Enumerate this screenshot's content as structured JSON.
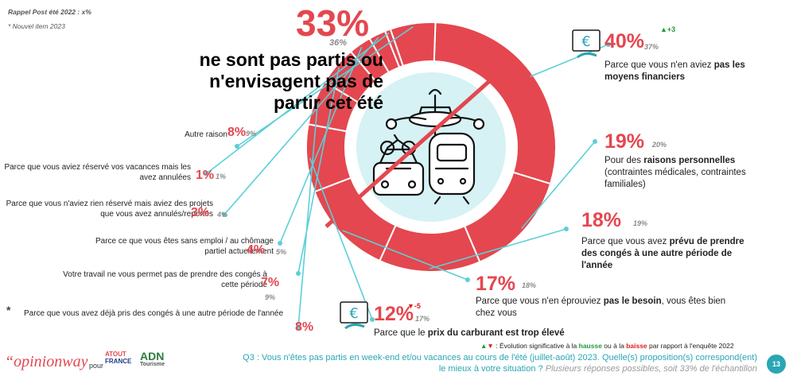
{
  "notes": {
    "recall": "Rappel Post été 2022 : x%",
    "new_item": "* Nouvel item 2023"
  },
  "headline": {
    "pct": "33%",
    "prev": "36%",
    "lines": [
      "ne sont pas partis ou",
      "n'envisagent pas de",
      "partir cet été"
    ]
  },
  "chart_data": {
    "type": "pie",
    "subtype": "donut",
    "title": "Q3 : Vous n'êtes pas partis en week-end et/ou vacances au cours de l'été (juillet-août) 2023. Quelle(s) proposition(s) correspond(ent) le mieux à votre situation ?",
    "series": [
      {
        "name": "2023",
        "categories": [
          "Parce que vous n'en aviez pas les moyens financiers",
          "Pour des raisons personnelles",
          "Parce que vous avez prévu de prendre des congés à une autre période de l'année",
          "Parce que vous n'en éprouviez pas le besoin",
          "Parce que le prix du carburant est trop élevé",
          "Parce que vous avez déjà pris des congés à une autre période de l'année",
          "Votre travail ne vous permet pas de prendre des congés à cette période",
          "Parce ce que vous êtes sans emploi / au chômage partiel actuellement",
          "Parce que vous n'aviez rien réservé mais aviez des projets que vous avez annulés/reportés",
          "Parce que vous aviez réservé vos vacances mais les avez annulées",
          "Autre raison"
        ],
        "values": [
          40,
          19,
          18,
          17,
          12,
          8,
          7,
          4,
          3,
          1,
          8
        ]
      },
      {
        "name": "2022",
        "values": [
          37,
          20,
          19,
          18,
          17,
          null,
          9,
          5,
          4,
          1,
          9
        ]
      }
    ]
  },
  "right_items": [
    {
      "pct": "40%",
      "prev": "37%",
      "delta": "▲+3",
      "text_plain": "Parce que vous n'en aviez ",
      "text_bold": "pas les moyens financiers",
      "text_after": ""
    },
    {
      "pct": "19%",
      "prev": "20%",
      "text_plain": "Pour des ",
      "text_bold": "raisons personnelles",
      "text_after": " (contraintes médicales, contraintes familiales)"
    },
    {
      "pct": "18%",
      "prev": "19%",
      "text_plain": "Parce que vous avez ",
      "text_bold": "prévu de prendre des congés à une autre période de l'année",
      "text_after": ""
    },
    {
      "pct": "17%",
      "prev": "18%",
      "text_plain": "Parce que vous n'en éprouviez ",
      "text_bold": "pas le besoin",
      "text_after": ", vous êtes bien chez vous"
    },
    {
      "pct": "12%",
      "prev": "17%",
      "delta": "▼-5",
      "text_plain": "Parce que le ",
      "text_bold": "prix du carburant est trop élevé",
      "text_after": ""
    }
  ],
  "left_items": [
    {
      "text": "Autre raison",
      "pct": "8%",
      "prev": "9%"
    },
    {
      "text": "Parce que vous aviez réservé vos vacances mais les avez annulées",
      "pct": "1%",
      "prev": "1%"
    },
    {
      "text": "Parce que vous n'aviez rien réservé mais aviez des projets que vous avez annulés/reportés",
      "pct": "3%",
      "prev": "4%"
    },
    {
      "text": "Parce ce que vous êtes sans emploi / au chômage partiel actuellement",
      "pct": "4%",
      "prev": "5%"
    },
    {
      "text": "Votre travail ne vous permet pas de prendre des congés à cette période",
      "pct": "7%",
      "prev": "9%"
    },
    {
      "star": "*",
      "text": "Parce que vous avez déjà pris des congés à une autre période de l'année",
      "pct": "8%"
    }
  ],
  "legend_note": {
    "pre": ": Évolution significative à la ",
    "up": "hausse",
    "mid": " ou à la ",
    "down": "baisse",
    "post": " par rapport à l'enquête 2022"
  },
  "footer": {
    "question": "Q3 : Vous n'êtes pas partis en week-end et/ou vacances au cours de l'été (juillet-août) 2023. Quelle(s) proposition(s) correspond(ent)",
    "question2": "le mieux à votre situation ?",
    "sample": "Plusieurs réponses possibles, soit 33% de l'échantillon",
    "brand": "“opinionway",
    "pour": "pour",
    "partner1_a": "ATOUT",
    "partner1_b": "FRANCE",
    "partner2": "ADN",
    "partner2_sub": "Tourisme",
    "page": "13"
  },
  "colors": {
    "accent": "#e4474f",
    "teal": "#5ccfd8",
    "text": "#222222"
  }
}
